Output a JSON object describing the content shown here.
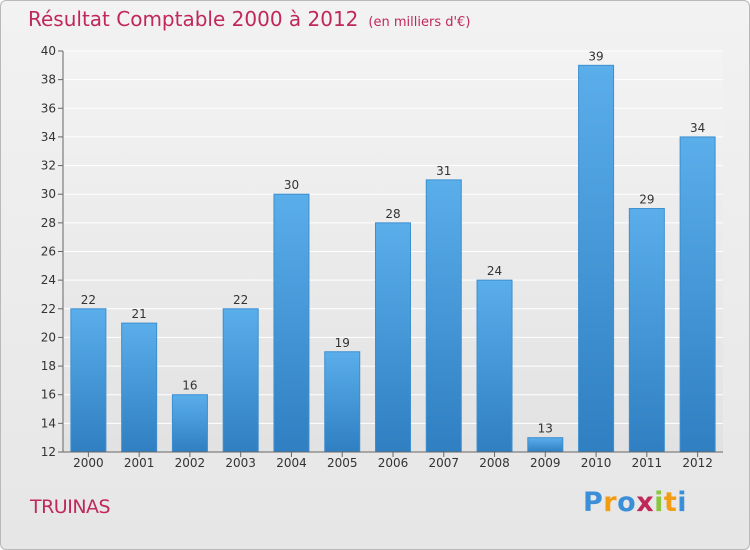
{
  "chart_data": {
    "type": "bar",
    "title": "Résultat Comptable 2000 à 2012",
    "unit_note": "(en milliers d'€)",
    "xlabel": "",
    "ylabel": "",
    "categories": [
      "2000",
      "2001",
      "2002",
      "2003",
      "2004",
      "2005",
      "2006",
      "2007",
      "2008",
      "2009",
      "2010",
      "2011",
      "2012"
    ],
    "values": [
      22,
      21,
      16,
      22,
      30,
      19,
      28,
      31,
      24,
      13,
      39,
      29,
      34
    ],
    "ylim": [
      12,
      40
    ],
    "yticks": [
      12,
      14,
      16,
      18,
      20,
      22,
      24,
      26,
      28,
      30,
      32,
      34,
      36,
      38,
      40
    ],
    "grid": true
  },
  "commune_name": "TRUINAS",
  "logo": {
    "letters": [
      "P",
      "r",
      "o",
      "x",
      "i",
      "t",
      "i"
    ],
    "colors": [
      "#3a8fd8",
      "#f39c12",
      "#3a8fd8",
      "#c0285a",
      "#8cc63f",
      "#f39c12",
      "#3a8fd8"
    ]
  },
  "colors": {
    "bar_top": "#5aaeea",
    "bar_bottom": "#2f7fc2",
    "bar_edge": "#3d8fd0",
    "accent": "#c0285a"
  }
}
